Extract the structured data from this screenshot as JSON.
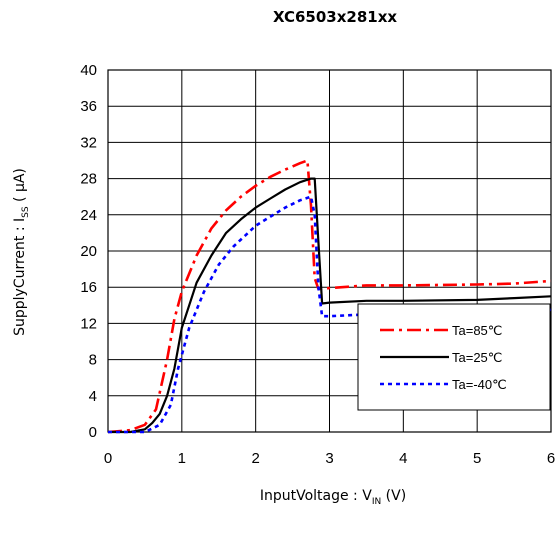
{
  "chart_data": {
    "type": "line",
    "title": "XC6503x281xx",
    "xlabel": {
      "main": "InputVoltage : V",
      "sub": "IN",
      "tail": " (V)"
    },
    "ylabel": {
      "main": "SupplyCurrent : I",
      "sub": "SS",
      "tail": " ( μA)"
    },
    "xlim": [
      0,
      6
    ],
    "ylim": [
      0,
      40
    ],
    "xticks": [
      0,
      1,
      2,
      3,
      4,
      5,
      6
    ],
    "yticks": [
      0,
      4,
      8,
      12,
      16,
      20,
      24,
      28,
      32,
      36,
      40
    ],
    "grid": true,
    "legend_position": "lower-right",
    "series": [
      {
        "name": "Ta=85℃",
        "color": "#ff0000",
        "dash": "dash-dot",
        "points": [
          [
            0,
            0
          ],
          [
            0.3,
            0.2
          ],
          [
            0.5,
            0.8
          ],
          [
            0.65,
            2.5
          ],
          [
            0.8,
            8
          ],
          [
            0.9,
            12.5
          ],
          [
            1.0,
            15.5
          ],
          [
            1.2,
            19.5
          ],
          [
            1.4,
            22.5
          ],
          [
            1.6,
            24.5
          ],
          [
            1.8,
            26
          ],
          [
            2.0,
            27.2
          ],
          [
            2.2,
            28.2
          ],
          [
            2.4,
            29
          ],
          [
            2.6,
            29.7
          ],
          [
            2.7,
            30
          ],
          [
            2.75,
            25
          ],
          [
            2.8,
            17
          ],
          [
            2.85,
            15.8
          ],
          [
            3.0,
            15.9
          ],
          [
            3.5,
            16.2
          ],
          [
            4.0,
            16.2
          ],
          [
            5.0,
            16.3
          ],
          [
            5.5,
            16.4
          ],
          [
            6.0,
            16.7
          ]
        ]
      },
      {
        "name": "Ta=25℃",
        "color": "#000000",
        "dash": "solid",
        "points": [
          [
            0,
            0
          ],
          [
            0.3,
            0
          ],
          [
            0.5,
            0.3
          ],
          [
            0.6,
            1
          ],
          [
            0.7,
            2
          ],
          [
            0.8,
            4
          ],
          [
            0.9,
            7
          ],
          [
            1.0,
            11.5
          ],
          [
            1.1,
            14
          ],
          [
            1.2,
            16.5
          ],
          [
            1.4,
            19.5
          ],
          [
            1.6,
            22
          ],
          [
            1.8,
            23.5
          ],
          [
            2.0,
            24.8
          ],
          [
            2.2,
            25.8
          ],
          [
            2.4,
            26.8
          ],
          [
            2.6,
            27.6
          ],
          [
            2.75,
            28
          ],
          [
            2.8,
            28
          ],
          [
            2.85,
            21
          ],
          [
            2.9,
            14.2
          ],
          [
            3.0,
            14.3
          ],
          [
            3.5,
            14.5
          ],
          [
            4.0,
            14.5
          ],
          [
            5.0,
            14.6
          ],
          [
            5.5,
            14.8
          ],
          [
            6.0,
            15
          ]
        ]
      },
      {
        "name": "Ta=-40℃",
        "color": "#0000ff",
        "dash": "dotted",
        "points": [
          [
            0,
            0
          ],
          [
            0.5,
            0
          ],
          [
            0.7,
            0.8
          ],
          [
            0.85,
            3
          ],
          [
            0.95,
            7
          ],
          [
            1.1,
            11.5
          ],
          [
            1.3,
            15.5
          ],
          [
            1.5,
            18.5
          ],
          [
            1.7,
            20.5
          ],
          [
            2.0,
            22.8
          ],
          [
            2.2,
            23.8
          ],
          [
            2.4,
            24.8
          ],
          [
            2.6,
            25.6
          ],
          [
            2.75,
            26
          ],
          [
            2.8,
            24
          ],
          [
            2.85,
            16
          ],
          [
            2.9,
            12.8
          ],
          [
            3.0,
            12.8
          ],
          [
            3.5,
            13
          ],
          [
            4.0,
            13
          ],
          [
            5.0,
            13.2
          ],
          [
            5.5,
            13.3
          ],
          [
            6.0,
            13.5
          ]
        ]
      }
    ]
  }
}
